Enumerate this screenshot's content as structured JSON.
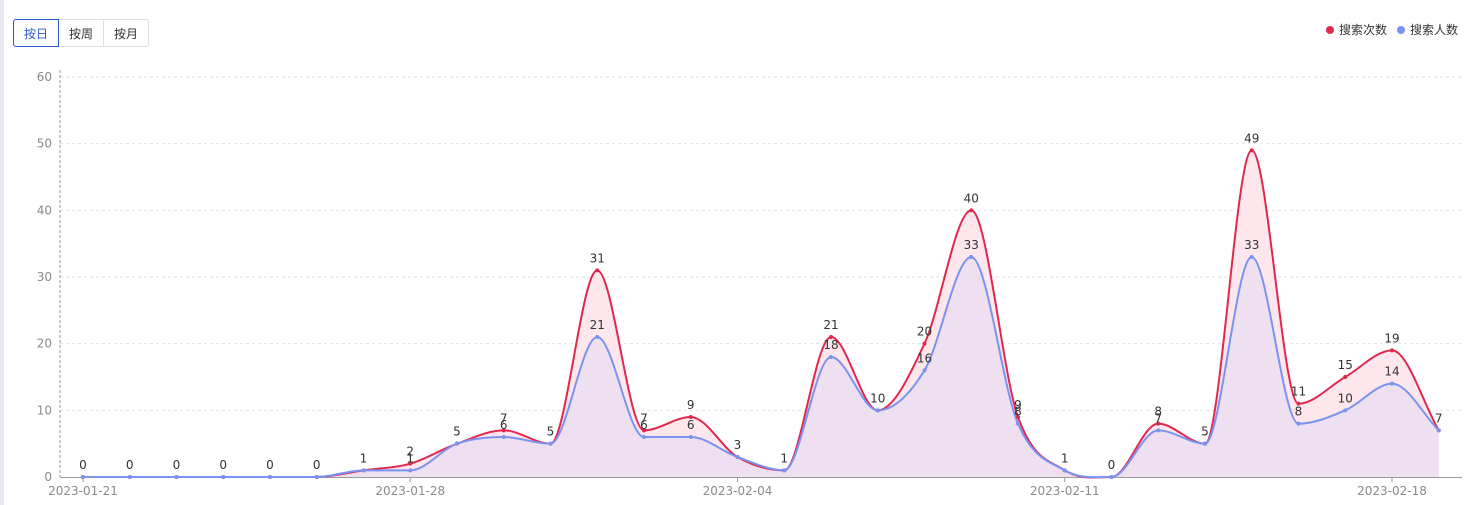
{
  "toolbar": {
    "tabs": [
      {
        "label": "按日",
        "active": true
      },
      {
        "label": "按周",
        "active": false
      },
      {
        "label": "按月",
        "active": false
      }
    ]
  },
  "colors": {
    "series1": "#e0284f",
    "series2": "#7b93f0",
    "area1": "#fde7ec",
    "area2": "#eee0f0",
    "accent": "#2d5cc8"
  },
  "chart_data": {
    "type": "area",
    "title": "",
    "xlabel": "",
    "ylabel": "",
    "ylim": [
      0,
      60
    ],
    "yticks": [
      0,
      10,
      20,
      30,
      40,
      50,
      60
    ],
    "grid": true,
    "legend_position": "top-right",
    "x": [
      "2023-01-21",
      "2023-01-22",
      "2023-01-23",
      "2023-01-24",
      "2023-01-25",
      "2023-01-26",
      "2023-01-27",
      "2023-01-28",
      "2023-01-29",
      "2023-01-30",
      "2023-01-31",
      "2023-02-01",
      "2023-02-02",
      "2023-02-03",
      "2023-02-04",
      "2023-02-05",
      "2023-02-06",
      "2023-02-07",
      "2023-02-08",
      "2023-02-09",
      "2023-02-10",
      "2023-02-11",
      "2023-02-12",
      "2023-02-13",
      "2023-02-14",
      "2023-02-15",
      "2023-02-16",
      "2023-02-17",
      "2023-02-18",
      "2023-02-19"
    ],
    "x_tick_labels": [
      {
        "index": 0,
        "label": "2023-01-21"
      },
      {
        "index": 7,
        "label": "2023-01-28"
      },
      {
        "index": 14,
        "label": "2023-02-04"
      },
      {
        "index": 21,
        "label": "2023-02-11"
      },
      {
        "index": 28,
        "label": "2023-02-18"
      }
    ],
    "series": [
      {
        "name": "搜索次数",
        "values": [
          0,
          0,
          0,
          0,
          0,
          0,
          1,
          2,
          5,
          7,
          5,
          31,
          7,
          9,
          3,
          1,
          21,
          10,
          20,
          40,
          9,
          1,
          0,
          8,
          5,
          49,
          11,
          15,
          19,
          7
        ]
      },
      {
        "name": "搜索人数",
        "values": [
          0,
          0,
          0,
          0,
          0,
          0,
          1,
          1,
          5,
          6,
          5,
          21,
          6,
          6,
          3,
          1,
          18,
          10,
          16,
          33,
          8,
          1,
          0,
          7,
          5,
          33,
          8,
          10,
          14,
          7
        ]
      }
    ],
    "label_rules": {
      "series2_hidden_indices": [
        0,
        1,
        2,
        3,
        4,
        5,
        6,
        8,
        10,
        14,
        15,
        17,
        21,
        22,
        24,
        29
      ]
    }
  }
}
